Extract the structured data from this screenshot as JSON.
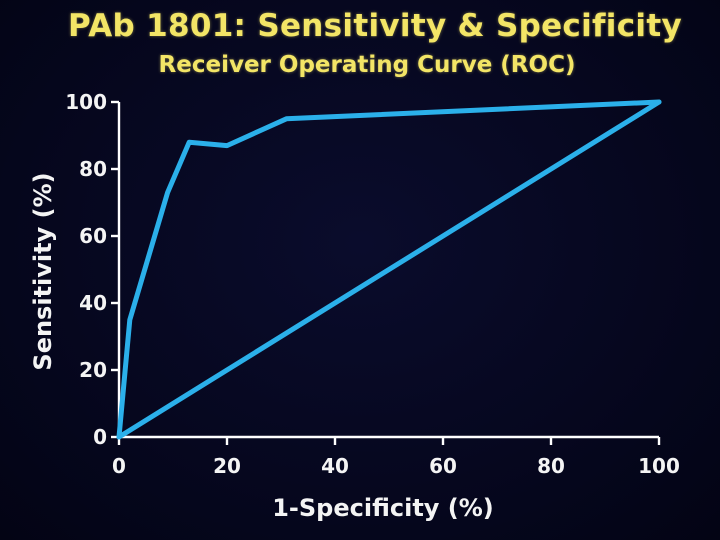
{
  "colors": {
    "background": "#05061e",
    "title": "#f3e566",
    "axes": "#ffffff",
    "series": "#2bb0ea"
  },
  "chart_data": {
    "type": "line",
    "title": "PAb 1801: Sensitivity & Specificity",
    "subtitle": "Receiver Operating Curve (ROC)",
    "xlabel": "1-Specificity (%)",
    "ylabel": "Sensitivity (%)",
    "xlim": [
      0,
      100
    ],
    "ylim": [
      0,
      100
    ],
    "xticks": [
      0,
      20,
      40,
      60,
      80,
      100
    ],
    "yticks": [
      0,
      20,
      40,
      60,
      80,
      100
    ],
    "grid": false,
    "legend": "none",
    "series": [
      {
        "x": [
          0,
          2,
          9,
          13,
          20,
          31,
          100
        ],
        "y": [
          0,
          35,
          73,
          88,
          87,
          95,
          100
        ]
      },
      {
        "x": [
          0,
          100
        ],
        "y": [
          0,
          100
        ]
      }
    ]
  }
}
